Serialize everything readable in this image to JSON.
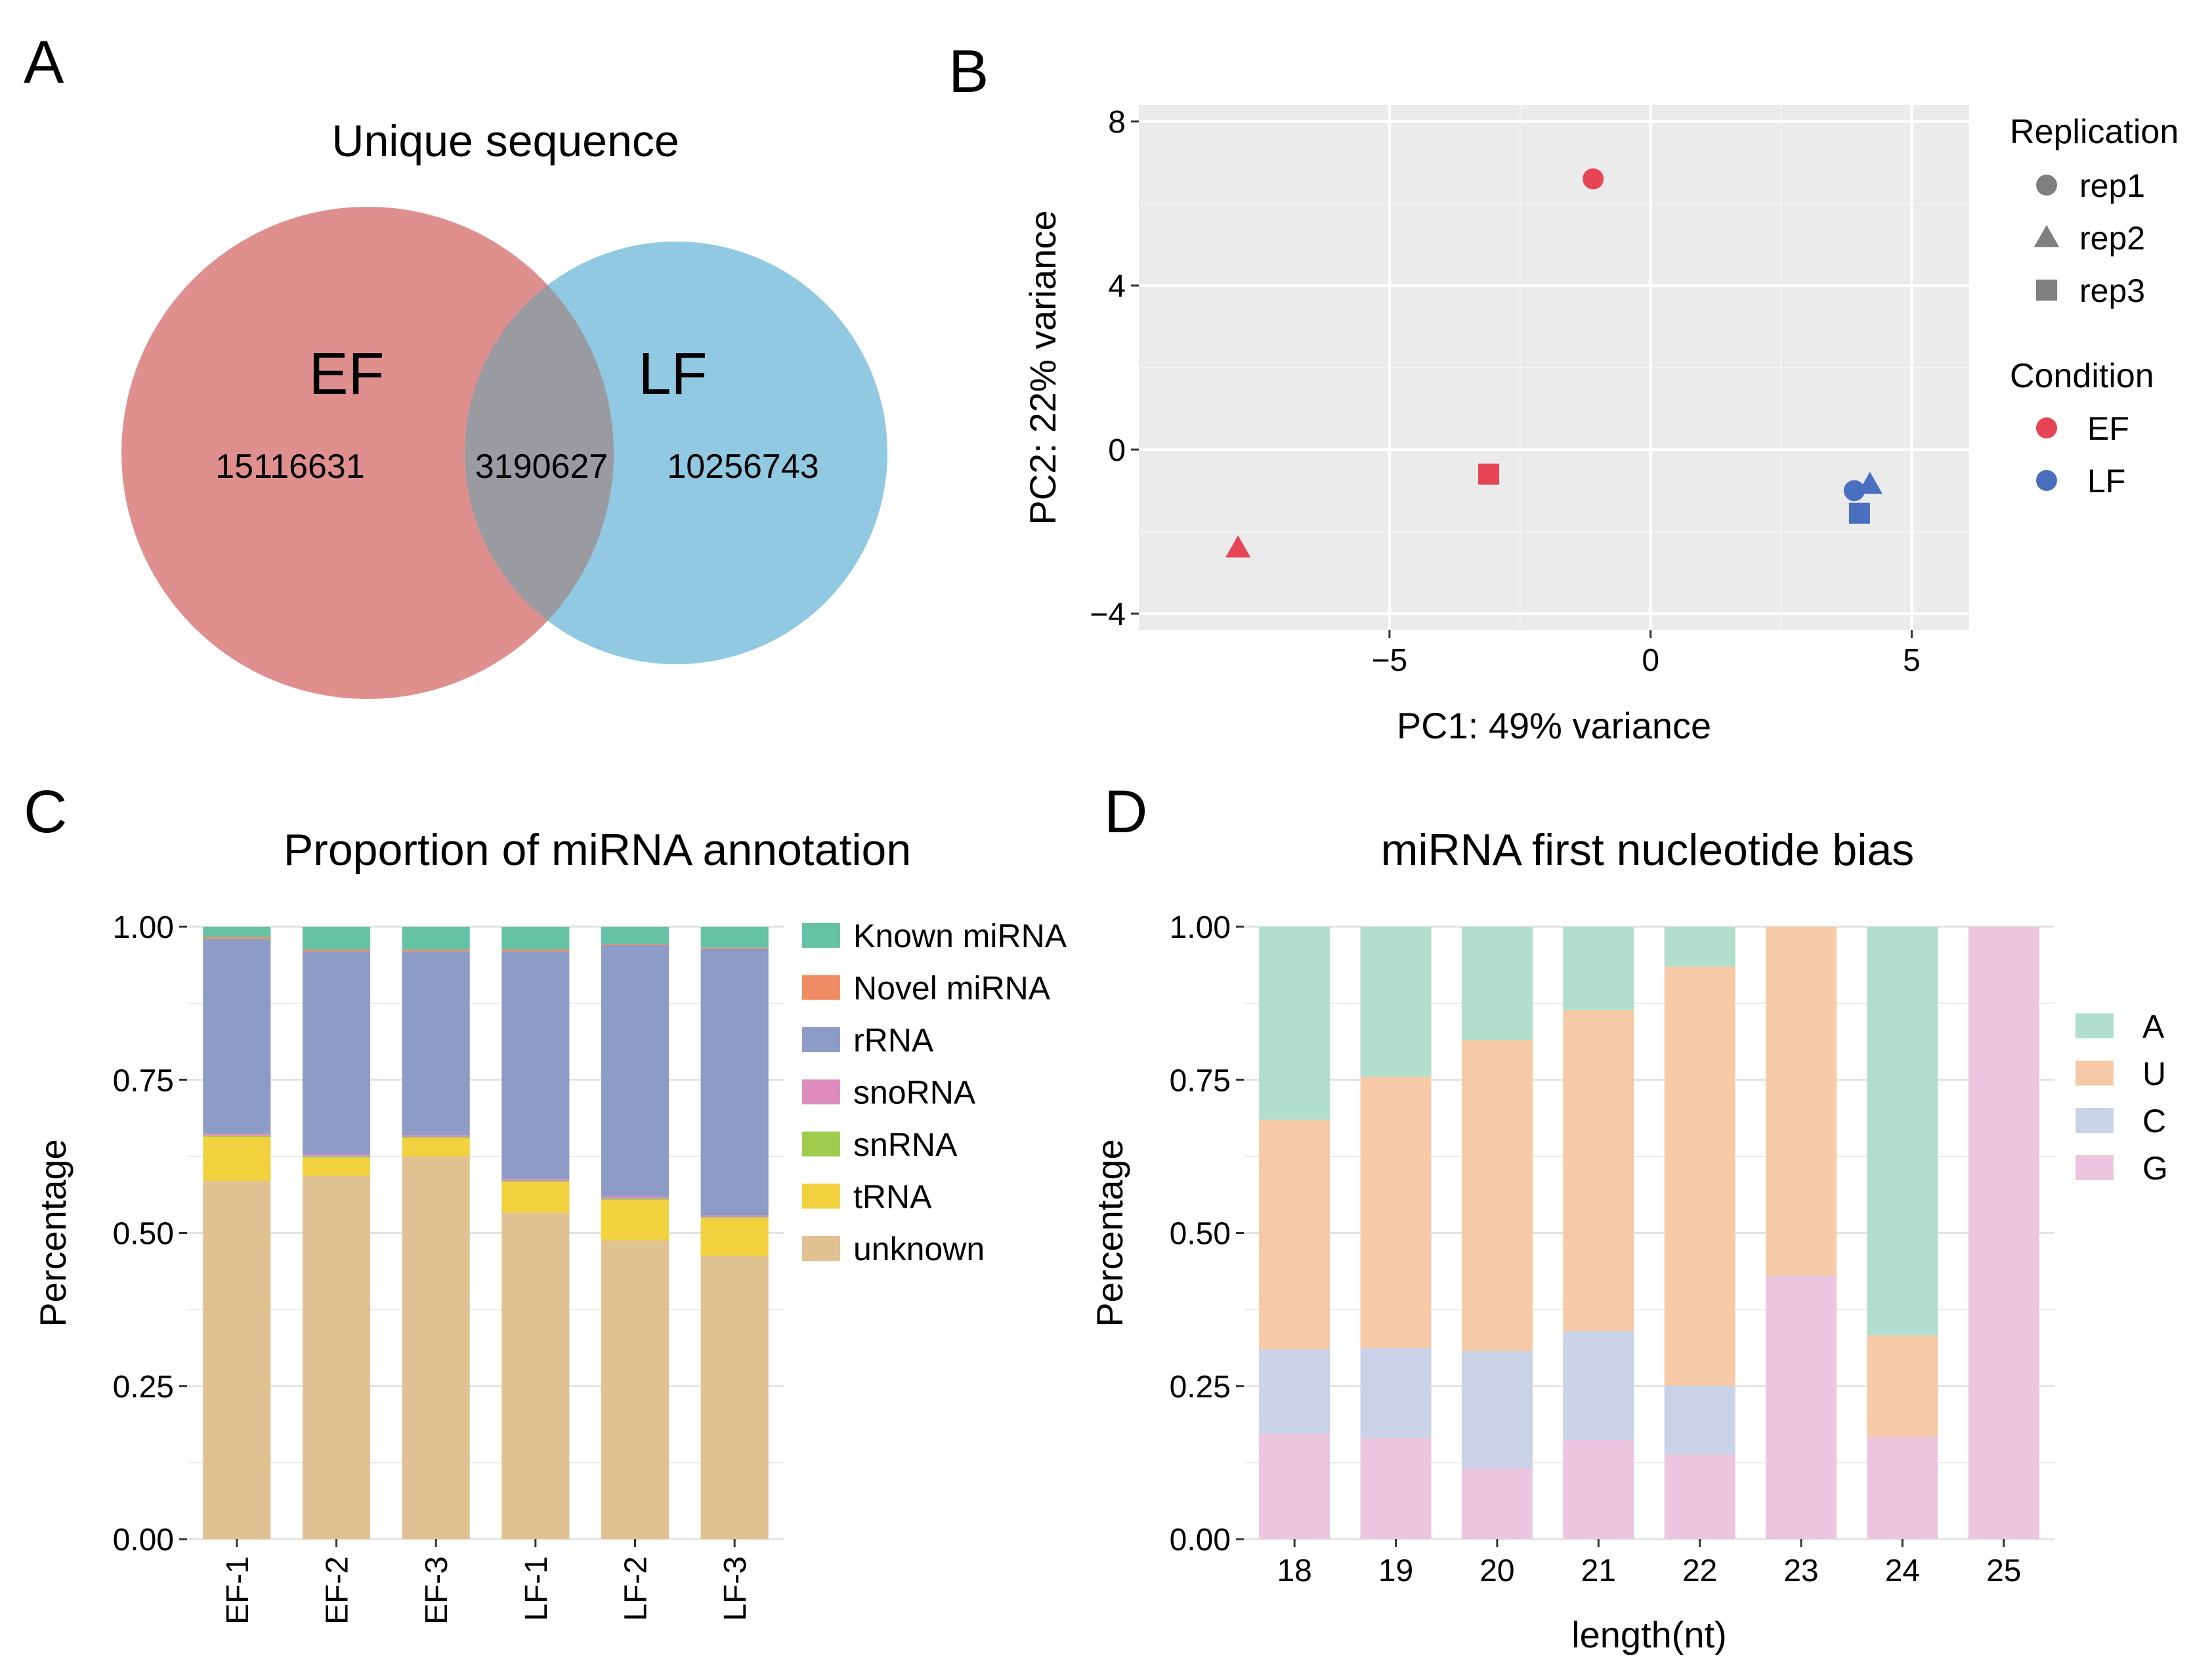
{
  "panels": {
    "A": {
      "letter": "A",
      "title": "Unique sequence",
      "sets": [
        {
          "name": "EF",
          "unique": "15116631",
          "color": "#E08F8F"
        },
        {
          "name": "LF",
          "unique": "10256743",
          "color": "#91C8E2"
        }
      ],
      "overlap": "3190627",
      "overlap_color": "#9A9AA1"
    },
    "B": {
      "letter": "B"
    },
    "C": {
      "letter": "C"
    },
    "D": {
      "letter": "D"
    }
  },
  "chart_data": [
    {
      "id": "B",
      "type": "scatter",
      "title": "",
      "xlabel": "PC1: 49% variance",
      "ylabel": "PC2: 22% variance",
      "xlim": [
        -9.8,
        6.1
      ],
      "ylim": [
        -4.4,
        8.4
      ],
      "x_ticks": [
        -5,
        0,
        5
      ],
      "x_tick_labels": [
        "−5",
        "0",
        "5"
      ],
      "y_ticks": [
        -4,
        0,
        4,
        8
      ],
      "y_tick_labels": [
        "−4",
        "0",
        "4",
        "8"
      ],
      "background": "#EBEBEB",
      "points": [
        {
          "x": -1.1,
          "y": 6.6,
          "condition": "EF",
          "replication": "rep1"
        },
        {
          "x": -7.9,
          "y": -2.4,
          "condition": "EF",
          "replication": "rep2"
        },
        {
          "x": -3.1,
          "y": -0.6,
          "condition": "EF",
          "replication": "rep3"
        },
        {
          "x": 3.9,
          "y": -1.0,
          "condition": "LF",
          "replication": "rep1"
        },
        {
          "x": 4.2,
          "y": -0.85,
          "condition": "LF",
          "replication": "rep2"
        },
        {
          "x": 4.0,
          "y": -1.55,
          "condition": "LF",
          "replication": "rep3"
        }
      ],
      "legend_replication": {
        "title": "Replication",
        "items": [
          {
            "label": "rep1",
            "shape": "circle"
          },
          {
            "label": "rep2",
            "shape": "triangle"
          },
          {
            "label": "rep3",
            "shape": "square"
          }
        ]
      },
      "legend_condition": {
        "title": "Condition",
        "items": [
          {
            "label": "EF",
            "color": "#E64556"
          },
          {
            "label": "LF",
            "color": "#4A6FBF"
          }
        ]
      }
    },
    {
      "id": "C",
      "type": "bar",
      "stacked": true,
      "title": "Proportion of miRNA annotation",
      "xlabel": "",
      "ylabel": "Percentage",
      "ylim": [
        0,
        1
      ],
      "y_ticks": [
        0,
        0.25,
        0.5,
        0.75,
        1
      ],
      "y_tick_labels": [
        "0.00",
        "0.25",
        "0.50",
        "0.75",
        "1.00"
      ],
      "categories": [
        "EF-1",
        "EF-2",
        "EF-3",
        "LF-1",
        "LF-2",
        "LF-3"
      ],
      "series": [
        {
          "name": "unknown",
          "color": "#E1C191",
          "values": [
            0.585,
            0.593,
            0.625,
            0.533,
            0.488,
            0.462
          ]
        },
        {
          "name": "tRNA",
          "color": "#F2D13F",
          "values": [
            0.072,
            0.03,
            0.03,
            0.05,
            0.066,
            0.062
          ]
        },
        {
          "name": "snRNA",
          "color": "#A0CC4E",
          "values": [
            0.002,
            0.002,
            0.002,
            0.002,
            0.002,
            0.002
          ]
        },
        {
          "name": "snoRNA",
          "color": "#DE8CBC",
          "values": [
            0.003,
            0.003,
            0.003,
            0.003,
            0.003,
            0.003
          ]
        },
        {
          "name": "rRNA",
          "color": "#8C9CC6",
          "values": [
            0.318,
            0.332,
            0.3,
            0.372,
            0.411,
            0.435
          ]
        },
        {
          "name": "Novel miRNA",
          "color": "#EF8C64",
          "values": [
            0.003,
            0.003,
            0.003,
            0.003,
            0.002,
            0.002
          ]
        },
        {
          "name": "Known miRNA",
          "color": "#66C2A5",
          "values": [
            0.017,
            0.037,
            0.037,
            0.037,
            0.028,
            0.034
          ]
        }
      ],
      "legend_order": [
        "Known miRNA",
        "Novel miRNA",
        "rRNA",
        "snoRNA",
        "snRNA",
        "tRNA",
        "unknown"
      ]
    },
    {
      "id": "D",
      "type": "bar",
      "stacked": true,
      "title": "miRNA first nucleotide bias",
      "xlabel": "length(nt)",
      "ylabel": "Percentage",
      "ylim": [
        0,
        1
      ],
      "y_ticks": [
        0,
        0.25,
        0.5,
        0.75,
        1
      ],
      "y_tick_labels": [
        "0.00",
        "0.25",
        "0.50",
        "0.75",
        "1.00"
      ],
      "categories": [
        "18",
        "19",
        "20",
        "21",
        "22",
        "23",
        "24",
        "25"
      ],
      "series": [
        {
          "name": "G",
          "color": "#EBC6DE",
          "values": [
            0.172,
            0.165,
            0.115,
            0.162,
            0.138,
            0.43,
            0.167,
            1.0
          ]
        },
        {
          "name": "C",
          "color": "#C9D2E6",
          "values": [
            0.138,
            0.147,
            0.192,
            0.178,
            0.112,
            0.0,
            0.0,
            0.0
          ]
        },
        {
          "name": "U",
          "color": "#F7CAA7",
          "values": [
            0.375,
            0.443,
            0.508,
            0.524,
            0.685,
            0.57,
            0.166,
            0.0
          ]
        },
        {
          "name": "A",
          "color": "#B2DECD",
          "values": [
            0.315,
            0.245,
            0.185,
            0.136,
            0.065,
            0.0,
            0.667,
            0.0
          ]
        }
      ],
      "legend_order": [
        "A",
        "U",
        "C",
        "G"
      ]
    }
  ]
}
